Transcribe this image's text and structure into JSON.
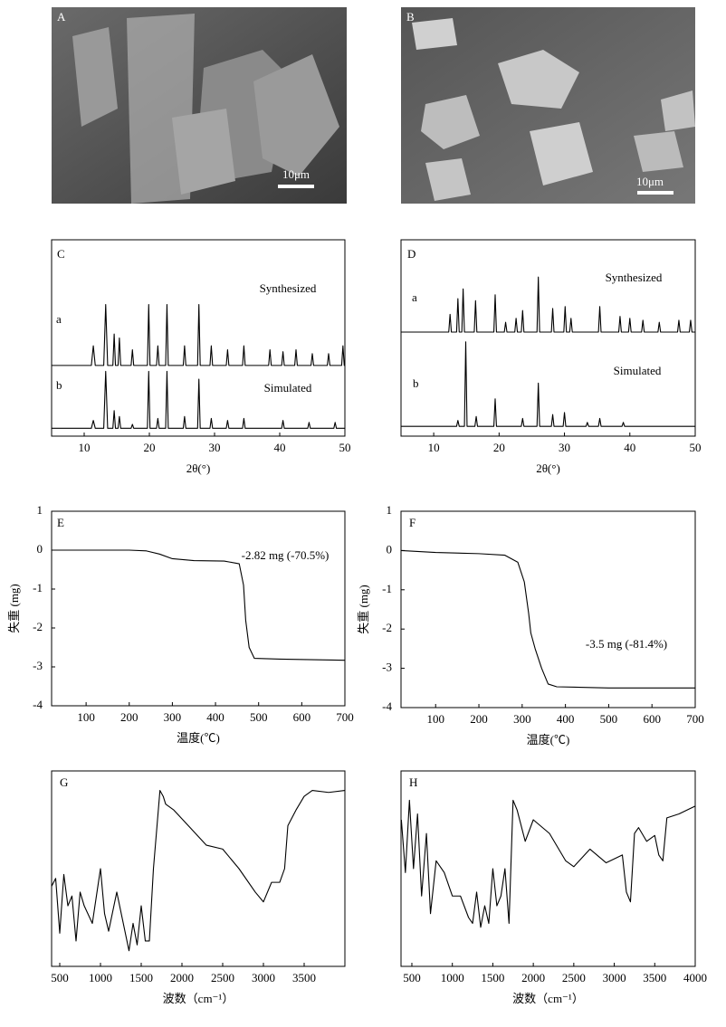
{
  "images": [
    {
      "label": "A",
      "scale_bar": "10μm"
    },
    {
      "label": "B",
      "scale_bar": "10μm"
    }
  ],
  "chart_data": [
    {
      "type": "line",
      "panel_label": "C",
      "x_label": "2θ(°)",
      "xlim": [
        5,
        50
      ],
      "xticks": [
        10,
        20,
        30,
        40,
        50
      ],
      "ylim": [
        0,
        100
      ],
      "series": [
        {
          "name": "Synthesized",
          "label": "a",
          "color": "#000000",
          "x": [
            5,
            11.1,
            11.4,
            11.7,
            13.0,
            13.3,
            13.6,
            14.4,
            14.6,
            14.8,
            15.2,
            15.4,
            15.6,
            17.2,
            17.4,
            17.6,
            19.7,
            19.9,
            20.1,
            21.1,
            21.3,
            21.5,
            22.5,
            22.7,
            22.9,
            25.2,
            25.4,
            25.6,
            27.4,
            27.6,
            27.8,
            29.3,
            29.5,
            29.7,
            31.8,
            32,
            32.2,
            34.3,
            34.5,
            34.7,
            38.3,
            38.5,
            38.7,
            40.3,
            40.5,
            40.7,
            42.3,
            42.5,
            42.7,
            44.8,
            45,
            45.2,
            47.3,
            47.5,
            47.7,
            49.5,
            49.7,
            49.9,
            50
          ],
          "values": [
            36,
            36,
            46,
            36,
            36,
            67,
            36,
            36,
            52,
            36,
            36,
            50,
            36,
            36,
            44,
            36,
            36,
            67,
            36,
            36,
            46,
            36,
            36,
            67,
            36,
            36,
            46,
            36,
            36,
            67,
            36,
            36,
            46,
            36,
            36,
            44,
            36,
            36,
            46,
            36,
            36,
            44,
            36,
            36,
            43,
            36,
            36,
            44,
            36,
            36,
            42,
            36,
            36,
            42,
            36,
            36,
            46,
            36,
            36
          ]
        },
        {
          "name": "Simulated",
          "label": "b",
          "color": "#000000",
          "x": [
            5,
            11.1,
            11.4,
            11.7,
            13.0,
            13.3,
            13.6,
            14.4,
            14.6,
            14.8,
            15.2,
            15.4,
            15.6,
            17.2,
            17.4,
            17.6,
            19.7,
            19.9,
            20.1,
            21.1,
            21.3,
            21.5,
            22.5,
            22.7,
            22.9,
            25.2,
            25.4,
            25.6,
            27.4,
            27.6,
            27.8,
            29.3,
            29.5,
            29.7,
            31.8,
            32,
            32.2,
            34.3,
            34.5,
            34.7,
            40.3,
            40.5,
            40.7,
            44.3,
            44.5,
            44.7,
            48.3,
            48.5,
            48.7,
            50
          ],
          "values": [
            4,
            4,
            8,
            4,
            4,
            33,
            4,
            4,
            13,
            4,
            4,
            10,
            4,
            4,
            6,
            4,
            4,
            33,
            4,
            4,
            9,
            4,
            4,
            33,
            4,
            4,
            10,
            4,
            4,
            29,
            4,
            4,
            9,
            4,
            4,
            8,
            4,
            4,
            9,
            4,
            4,
            8,
            4,
            4,
            7,
            4,
            4,
            7,
            4,
            4
          ]
        }
      ]
    },
    {
      "type": "line",
      "panel_label": "D",
      "x_label": "2θ(°)",
      "xlim": [
        5,
        50
      ],
      "xticks": [
        10,
        20,
        30,
        40,
        50
      ],
      "ylim": [
        0,
        100
      ],
      "series": [
        {
          "name": "Synthesized",
          "label": "a",
          "color": "#000000",
          "x": [
            5,
            12.3,
            12.5,
            12.7,
            13.5,
            13.7,
            13.9,
            14.3,
            14.5,
            14.7,
            16.2,
            16.4,
            16.6,
            19.2,
            19.4,
            19.6,
            20.8,
            21,
            21.2,
            22.4,
            22.6,
            22.8,
            23.4,
            23.6,
            23.8,
            25.8,
            26,
            26.2,
            28,
            28.2,
            28.4,
            29.9,
            30.1,
            30.3,
            30.8,
            31,
            31.2,
            35.2,
            35.4,
            35.6,
            38.3,
            38.5,
            38.7,
            39.8,
            40,
            40.2,
            41.8,
            42,
            42.2,
            44.3,
            44.5,
            44.7,
            47.3,
            47.5,
            47.7,
            49.1,
            49.3,
            49.5,
            50
          ],
          "values": [
            53,
            53,
            62,
            53,
            53,
            70,
            53,
            53,
            75,
            53,
            53,
            69,
            53,
            53,
            72,
            53,
            53,
            58,
            53,
            53,
            60,
            53,
            53,
            64,
            53,
            53,
            81,
            53,
            53,
            65,
            53,
            53,
            66,
            53,
            53,
            60,
            53,
            53,
            66,
            53,
            53,
            61,
            53,
            53,
            60,
            53,
            53,
            59,
            53,
            53,
            58,
            53,
            53,
            59,
            53,
            53,
            59,
            53,
            53
          ]
        },
        {
          "name": "Simulated",
          "label": "b",
          "color": "#000000",
          "x": [
            5,
            13.5,
            13.7,
            13.9,
            14.7,
            14.9,
            15.1,
            16.3,
            16.5,
            16.7,
            19.2,
            19.4,
            19.6,
            23.4,
            23.6,
            23.8,
            25.8,
            26,
            26.2,
            28,
            28.2,
            28.4,
            29.8,
            30,
            30.2,
            33.3,
            33.5,
            33.7,
            35.2,
            35.4,
            35.6,
            38.8,
            39,
            39.2,
            50
          ],
          "values": [
            5,
            5,
            8,
            5,
            5,
            48,
            5,
            5,
            10,
            5,
            5,
            19,
            5,
            5,
            9,
            5,
            5,
            27,
            5,
            5,
            11,
            5,
            5,
            12,
            5,
            5,
            7,
            5,
            5,
            9,
            5,
            5,
            7,
            5,
            5
          ]
        }
      ]
    },
    {
      "type": "line",
      "panel_label": "E",
      "x_label": "温度(℃)",
      "y_label": "失重 (mg)",
      "annotation": "-2.82 mg (-70.5%)",
      "xlim": [
        20,
        700
      ],
      "xticks": [
        100,
        200,
        300,
        400,
        500,
        600,
        700
      ],
      "ylim": [
        -4,
        1
      ],
      "yticks": [
        -4,
        -3,
        -2,
        -1,
        0,
        1
      ],
      "series": [
        {
          "color": "#000000",
          "x": [
            20,
            200,
            240,
            270,
            300,
            350,
            420,
            455,
            465,
            470,
            478,
            490,
            550,
            700
          ],
          "values": [
            0,
            0,
            -0.02,
            -0.1,
            -0.22,
            -0.27,
            -0.28,
            -0.35,
            -0.9,
            -1.8,
            -2.5,
            -2.78,
            -2.8,
            -2.83
          ]
        }
      ]
    },
    {
      "type": "line",
      "panel_label": "F",
      "x_label": "温度(℃)",
      "y_label": "失重 (mg)",
      "annotation": "-3.5 mg (-81.4%)",
      "xlim": [
        20,
        700
      ],
      "xticks": [
        100,
        200,
        300,
        400,
        500,
        600,
        700
      ],
      "ylim": [
        -4,
        1
      ],
      "yticks": [
        -4,
        -3,
        -2,
        -1,
        0,
        1
      ],
      "series": [
        {
          "color": "#000000",
          "x": [
            20,
            100,
            200,
            260,
            290,
            305,
            315,
            320,
            330,
            345,
            360,
            380,
            500,
            700
          ],
          "values": [
            0,
            -0.05,
            -0.08,
            -0.12,
            -0.3,
            -0.8,
            -1.6,
            -2.1,
            -2.5,
            -3.0,
            -3.4,
            -3.47,
            -3.5,
            -3.5
          ]
        }
      ]
    },
    {
      "type": "line",
      "panel_label": "G",
      "x_label": "波数（cm⁻¹）",
      "xlim": [
        400,
        4000
      ],
      "xticks": [
        500,
        1000,
        1500,
        2000,
        2500,
        3000,
        3500
      ],
      "ylim": [
        0,
        100
      ],
      "series": [
        {
          "color": "#000000",
          "x": [
            400,
            450,
            500,
            550,
            600,
            650,
            700,
            750,
            800,
            900,
            1000,
            1050,
            1100,
            1200,
            1300,
            1350,
            1400,
            1450,
            1500,
            1550,
            1600,
            1650,
            1700,
            1730,
            1770,
            1800,
            1900,
            2100,
            2300,
            2500,
            2700,
            2900,
            3000,
            3100,
            3200,
            3260,
            3300,
            3400,
            3500,
            3600,
            3800,
            4000
          ],
          "values": [
            41,
            45,
            17,
            47,
            31,
            36,
            13,
            38,
            31,
            22,
            50,
            27,
            18,
            38,
            18,
            8,
            22,
            11,
            31,
            13,
            13,
            50,
            75,
            90,
            87,
            83,
            80,
            71,
            62,
            60,
            50,
            38,
            33,
            43,
            43,
            50,
            72,
            80,
            87,
            90,
            89,
            90
          ]
        }
      ]
    },
    {
      "type": "line",
      "panel_label": "H",
      "x_label": "波数（cm⁻¹）",
      "xlim": [
        366,
        4000
      ],
      "xticks": [
        500,
        1000,
        1500,
        2000,
        2500,
        3000,
        3500,
        4000
      ],
      "ylim": [
        0,
        100
      ],
      "series": [
        {
          "color": "#000000",
          "x": [
            370,
            420,
            470,
            520,
            570,
            620,
            680,
            730,
            800,
            900,
            1000,
            1100,
            1200,
            1250,
            1300,
            1350,
            1400,
            1450,
            1500,
            1550,
            1600,
            1650,
            1700,
            1750,
            1800,
            1900,
            2000,
            2200,
            2400,
            2500,
            2700,
            2900,
            3100,
            3150,
            3200,
            3250,
            3300,
            3400,
            3500,
            3550,
            3600,
            3650,
            3800,
            4000
          ],
          "values": [
            75,
            48,
            85,
            50,
            78,
            36,
            68,
            27,
            54,
            48,
            36,
            36,
            25,
            22,
            38,
            20,
            31,
            22,
            50,
            31,
            36,
            50,
            22,
            85,
            80,
            64,
            75,
            68,
            54,
            51,
            60,
            53,
            57,
            38,
            33,
            68,
            71,
            64,
            67,
            57,
            54,
            76,
            78,
            82
          ]
        }
      ]
    }
  ]
}
